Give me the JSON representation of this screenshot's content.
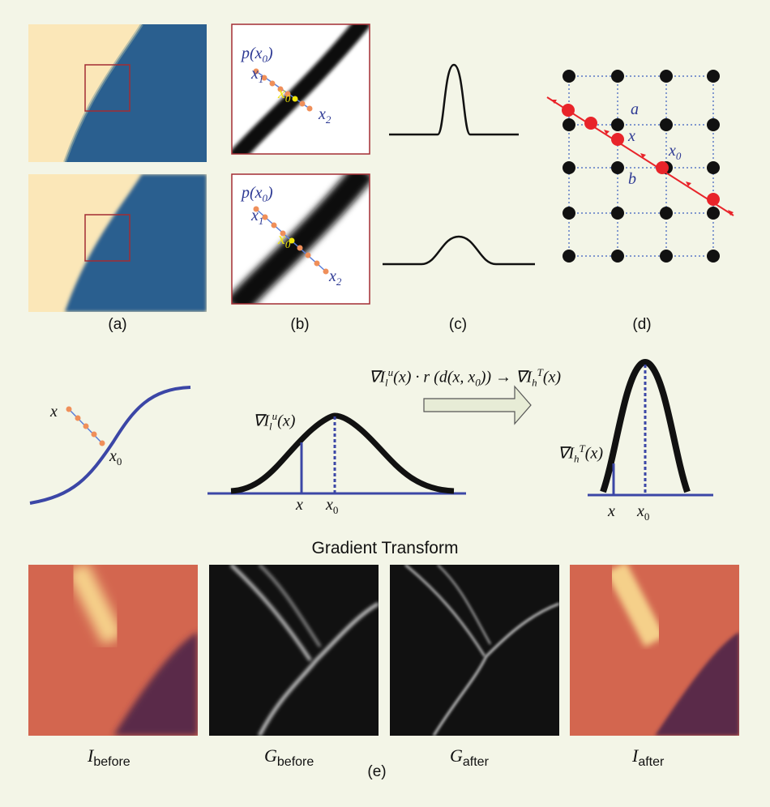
{
  "panel_labels": {
    "a": "(a)",
    "b": "(b)",
    "c": "(c)",
    "d": "(d)",
    "e": "(e)"
  },
  "panel_b": {
    "p_label": "p(x",
    "p_sub": "0",
    "p_close": ")",
    "x1": "x",
    "x1_sub": "1",
    "x0": "x",
    "x0_sub": "0",
    "x2": "x",
    "x2_sub": "2"
  },
  "panel_d": {
    "a": "a",
    "b": "b",
    "x": "x",
    "x0": "x",
    "x0_sub": "0"
  },
  "profile": {
    "x": "x",
    "x0": "x",
    "x0_sub": "0",
    "grad_low": "∇I",
    "grad_low_sub": "l",
    "grad_low_sup": "u",
    "grad_low_arg": "(x)",
    "grad_high": "∇I",
    "grad_high_sub": "h",
    "grad_high_sup": "T",
    "grad_high_arg": "(x)",
    "formula_left": "∇I",
    "formula_left_sub": "l",
    "formula_left_sup": "u",
    "formula_mid": "(x) · r (d(x, x",
    "formula_mid_sub": "0",
    "formula_mid_end": ")) → ∇I",
    "formula_right_sub": "h",
    "formula_right_sup": "T",
    "formula_right_end": "(x)"
  },
  "gradient_transform_title": "Gradient Transform",
  "images_e": [
    {
      "base": "I",
      "sub": "before"
    },
    {
      "base": "G",
      "sub": "before"
    },
    {
      "base": "G",
      "sub": "after"
    },
    {
      "base": "I",
      "sub": "after"
    }
  ],
  "colors": {
    "background": "#f3f5e7",
    "edge_blue": "#27588a",
    "cream": "#fbe7b8",
    "box_red": "#a32d33",
    "curve_blue": "#3b46a6",
    "dot_red": "#e8242a",
    "dot_orange": "#ef8f5a"
  }
}
